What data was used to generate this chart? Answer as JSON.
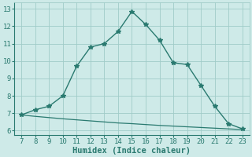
{
  "x": [
    7,
    8,
    9,
    10,
    11,
    12,
    13,
    14,
    15,
    16,
    17,
    18,
    19,
    20,
    21,
    22,
    23
  ],
  "y_upper": [
    6.9,
    7.2,
    7.4,
    8.0,
    9.7,
    10.8,
    11.0,
    11.7,
    12.85,
    12.1,
    11.2,
    9.9,
    9.8,
    8.6,
    7.4,
    6.4,
    6.1
  ],
  "y_lower": [
    6.9,
    6.82,
    6.75,
    6.68,
    6.62,
    6.56,
    6.5,
    6.44,
    6.4,
    6.35,
    6.3,
    6.26,
    6.22,
    6.18,
    6.14,
    6.1,
    6.06
  ],
  "line_color": "#2a7a70",
  "bg_color": "#ceeae8",
  "grid_color": "#a0ccc8",
  "xlabel": "Humidex (Indice chaleur)",
  "xlim": [
    6.5,
    23.5
  ],
  "ylim": [
    5.75,
    13.35
  ],
  "xticks": [
    7,
    8,
    9,
    10,
    11,
    12,
    13,
    14,
    15,
    16,
    17,
    18,
    19,
    20,
    21,
    22,
    23
  ],
  "yticks": [
    6,
    7,
    8,
    9,
    10,
    11,
    12,
    13
  ],
  "xlabel_fontsize": 7.5,
  "tick_fontsize": 6.5
}
